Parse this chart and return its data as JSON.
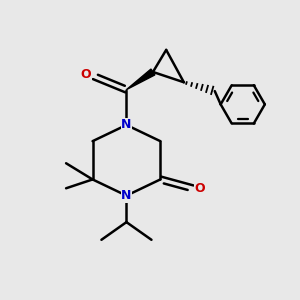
{
  "bg_color": "#e8e8e8",
  "bond_color": "#000000",
  "N_color": "#0000cc",
  "O_color": "#cc0000",
  "line_width": 1.8,
  "fig_size": [
    3.0,
    3.0
  ],
  "dpi": 100,
  "xlim": [
    0,
    10
  ],
  "ylim": [
    0,
    10
  ]
}
